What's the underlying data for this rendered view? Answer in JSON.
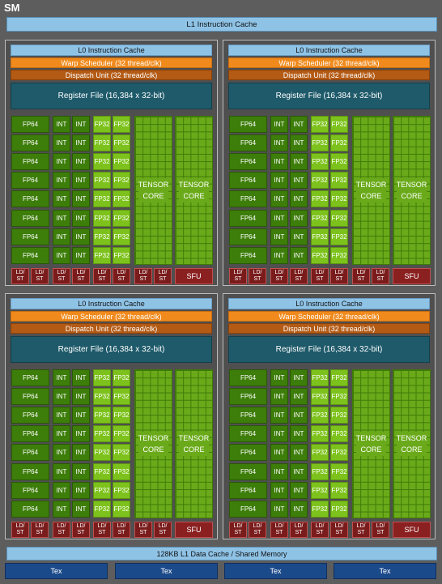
{
  "sm_title": "SM",
  "l1_instruction_cache": "L1 Instruction Cache",
  "partition": {
    "l0_cache": "L0 Instruction Cache",
    "warp_scheduler": "Warp Scheduler (32 thread/clk)",
    "dispatch_unit": "Dispatch Unit (32 thread/clk)",
    "register_file": "Register File (16,384 x 32-bit)",
    "fp64_label": "FP64",
    "int_label": "INT",
    "fp32_label": "FP32",
    "tensor_label_line1": "TENSOR",
    "tensor_label_line2": "CORE",
    "ldst_line1": "LD/",
    "ldst_line2": "ST",
    "sfu_label": "SFU"
  },
  "l1_data_cache": "128KB L1 Data Cache / Shared Memory",
  "tex_label": "Tex",
  "colors": {
    "cache_blue": "#8fc3e6",
    "warp_orange": "#f08a1c",
    "dispatch_brown": "#b35a14",
    "register_teal": "#1e5a6a",
    "fp64_green": "#3d7d0a",
    "fp32_lime": "#7dc21c",
    "ldst_red": "#7a1c1c",
    "tex_blue": "#1b4a8a"
  }
}
